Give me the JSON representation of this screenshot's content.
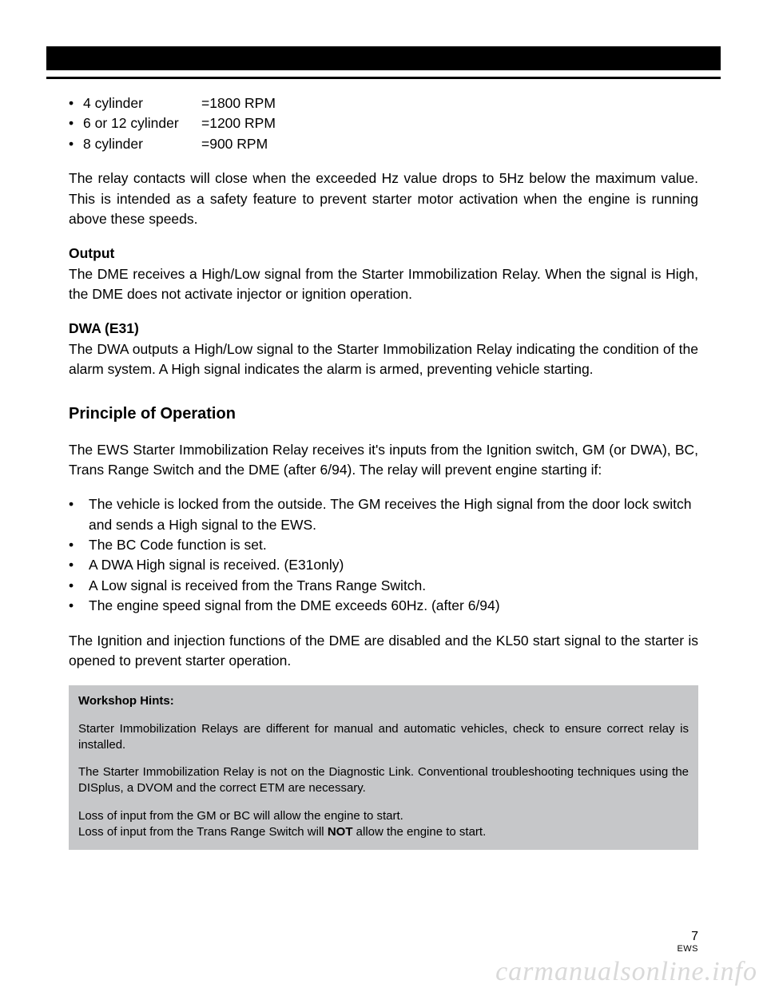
{
  "rpm": [
    {
      "label": "4 cylinder",
      "value": "=1800 RPM"
    },
    {
      "label": "6 or 12 cylinder",
      "value": "=1200 RPM"
    },
    {
      "label": "8 cylinder",
      "value": "=900 RPM"
    }
  ],
  "para1": "The relay contacts will close when the exceeded Hz value drops to 5Hz below the maximum value. This is intended as a safety feature to prevent starter motor activation when the engine is running above these speeds.",
  "output_h": "Output",
  "output_p": "The DME receives a High/Low signal from the Starter Immobilization Relay. When the signal is High, the DME does not activate injector or ignition operation.",
  "dwa_h": "DWA (E31)",
  "dwa_p": "The DWA outputs a High/Low signal to the Starter Immobilization Relay indicating the condition of the alarm system.  A High signal indicates the alarm is armed, preventing vehicle starting.",
  "po_h": "Principle of Operation",
  "po_intro": "The EWS Starter Immobilization Relay receives it's inputs from the Ignition switch,  GM (or DWA), BC, Trans Range Switch and the DME (after 6/94). The relay will prevent engine starting if:",
  "po_items": [
    "The vehicle is locked from the outside. The GM receives the High signal from the door lock switch and sends a High signal to the EWS.",
    "The BC Code function is set.",
    "A DWA High signal is received. (E31only)",
    "A Low signal is received from the Trans Range Switch.",
    "The engine speed signal from the DME exceeds 60Hz. (after 6/94)"
  ],
  "po_out": "The Ignition and injection functions of the DME are disabled and the KL50 start signal to the starter is opened to prevent starter operation.",
  "hints_h": "Workshop Hints:",
  "hints_p1": "Starter Immobilization Relays are different for manual and automatic vehicles, check to ensure correct relay is installed.",
  "hints_p2": "The Starter Immobilization Relay is not on the Diagnostic Link. Conventional troubleshooting techniques using the DISplus, a DVOM and the correct ETM are necessary.",
  "hints_p3a": "Loss of input from the GM or BC will allow the engine to start.",
  "hints_p3b_pre": "Loss of input from the Trans Range Switch will ",
  "hints_p3b_bold": "NOT",
  "hints_p3b_post": " allow the engine to start.",
  "page_num": "7",
  "page_foot": "EWS",
  "watermark": "carmanualsonline.info",
  "bullet": "•"
}
